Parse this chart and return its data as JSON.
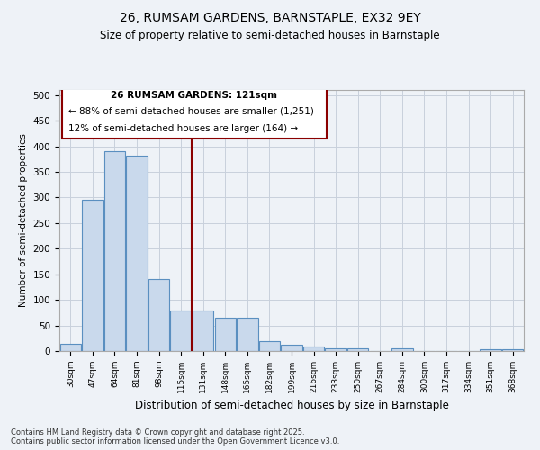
{
  "title1": "26, RUMSAM GARDENS, BARNSTAPLE, EX32 9EY",
  "title2": "Size of property relative to semi-detached houses in Barnstaple",
  "xlabel": "Distribution of semi-detached houses by size in Barnstaple",
  "ylabel": "Number of semi-detached properties",
  "categories": [
    "30sqm",
    "47sqm",
    "64sqm",
    "81sqm",
    "98sqm",
    "115sqm",
    "131sqm",
    "148sqm",
    "165sqm",
    "182sqm",
    "199sqm",
    "216sqm",
    "233sqm",
    "250sqm",
    "267sqm",
    "284sqm",
    "300sqm",
    "317sqm",
    "334sqm",
    "351sqm",
    "368sqm"
  ],
  "values": [
    14,
    295,
    390,
    382,
    140,
    80,
    80,
    65,
    65,
    20,
    12,
    8,
    5,
    5,
    0,
    5,
    0,
    0,
    0,
    4,
    3
  ],
  "bar_color": "#c9d9ec",
  "bar_edge_color": "#5a8fc0",
  "vline_x": 5.5,
  "vline_color": "#8b0000",
  "annotation_title": "26 RUMSAM GARDENS: 121sqm",
  "annotation_line1": "← 88% of semi-detached houses are smaller (1,251)",
  "annotation_line2": "12% of semi-detached houses are larger (164) →",
  "annotation_box_color": "#8b0000",
  "ylim": [
    0,
    510
  ],
  "yticks": [
    0,
    50,
    100,
    150,
    200,
    250,
    300,
    350,
    400,
    450,
    500
  ],
  "footer": "Contains HM Land Registry data © Crown copyright and database right 2025.\nContains public sector information licensed under the Open Government Licence v3.0.",
  "bg_color": "#eef2f7",
  "plot_bg_color": "#eef2f7"
}
